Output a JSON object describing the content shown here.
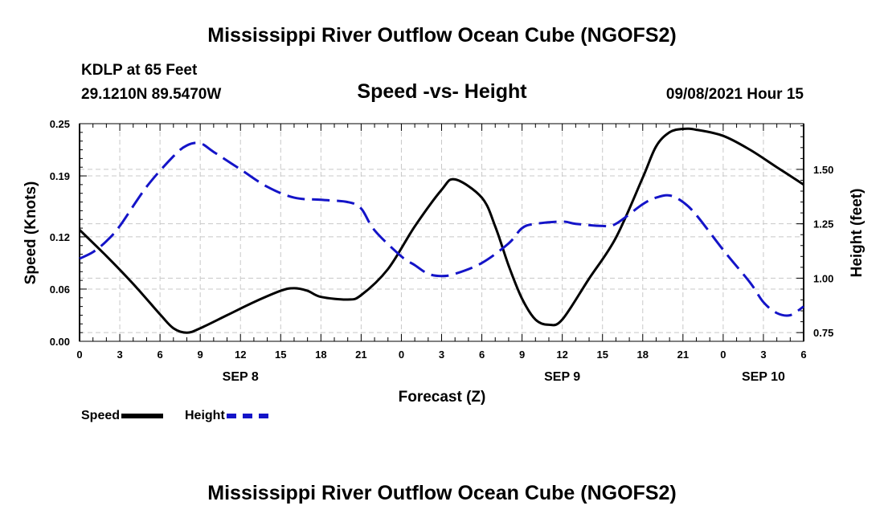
{
  "page": {
    "title": "Mississippi River Outflow Ocean Cube (NGOFS2)",
    "footer_title": "Mississippi River Outflow Ocean Cube (NGOFS2)",
    "station": "KDLP at 65 Feet",
    "location": "29.1210N  89.5470W",
    "subtitle": "Speed -vs- Height",
    "timestamp": "09/08/2021 Hour 15"
  },
  "colors": {
    "speed": "#000000",
    "height": "#1414c8",
    "grid": "#c8c8c8"
  },
  "chart_data": {
    "type": "line",
    "title": "Speed -vs- Height",
    "xlabel": "Forecast (Z)",
    "ylabel": "Speed (Knots)",
    "y2label": "Height (feet)",
    "xlim": [
      0,
      54
    ],
    "ylim": [
      0,
      0.25
    ],
    "y2lim": [
      0.71,
      1.71
    ],
    "x_ticks": [
      0,
      3,
      6,
      9,
      12,
      15,
      18,
      21,
      24,
      27,
      30,
      33,
      36,
      39,
      42,
      45,
      48,
      51,
      54
    ],
    "x_tick_labels": [
      "0",
      "3",
      "6",
      "9",
      "12",
      "15",
      "18",
      "21",
      "0",
      "3",
      "6",
      "9",
      "12",
      "15",
      "18",
      "21",
      "0",
      "3",
      "6"
    ],
    "y_ticks": [
      0.0,
      0.06,
      0.12,
      0.19,
      0.25
    ],
    "y_tick_labels": [
      "0.00",
      "0.06",
      "0.12",
      "0.19",
      "0.25"
    ],
    "y2_ticks": [
      0.75,
      1.0,
      1.25,
      1.5
    ],
    "y2_tick_labels": [
      "0.75",
      "1.00",
      "1.25",
      "1.50"
    ],
    "date_labels": [
      {
        "x": 12,
        "label": "SEP 8"
      },
      {
        "x": 36,
        "label": "SEP 9"
      },
      {
        "x": 51,
        "label": "SEP 10"
      }
    ],
    "legend": [
      "Speed",
      "Height"
    ],
    "series": [
      {
        "name": "Speed",
        "axis": "left",
        "style": "solid",
        "x": [
          0,
          2,
          4,
          6,
          7,
          8,
          9,
          11,
          13,
          15,
          16,
          17,
          18,
          20,
          21,
          23,
          25,
          27,
          28,
          30,
          31,
          32,
          33,
          34,
          35,
          36,
          38,
          40,
          42,
          43,
          44,
          45,
          46,
          48,
          50,
          52,
          54
        ],
        "values": [
          0.128,
          0.098,
          0.066,
          0.031,
          0.015,
          0.01,
          0.015,
          0.03,
          0.045,
          0.058,
          0.061,
          0.058,
          0.051,
          0.048,
          0.053,
          0.083,
          0.132,
          0.174,
          0.186,
          0.165,
          0.132,
          0.087,
          0.049,
          0.025,
          0.019,
          0.025,
          0.072,
          0.119,
          0.188,
          0.224,
          0.24,
          0.244,
          0.243,
          0.236,
          0.22,
          0.2,
          0.18
        ]
      },
      {
        "name": "Height",
        "axis": "right",
        "style": "dashed",
        "x": [
          0,
          1,
          2,
          3,
          5,
          7,
          8,
          9,
          10,
          12,
          14,
          16,
          18,
          20,
          21,
          22,
          24,
          25,
          26,
          27,
          28,
          30,
          32,
          33,
          34,
          36,
          37,
          39,
          40,
          42,
          43,
          44,
          45,
          46,
          48,
          50,
          51,
          52,
          53,
          54
        ],
        "values": [
          1.09,
          1.12,
          1.17,
          1.24,
          1.42,
          1.56,
          1.61,
          1.62,
          1.58,
          1.5,
          1.42,
          1.37,
          1.36,
          1.35,
          1.32,
          1.22,
          1.1,
          1.06,
          1.02,
          1.01,
          1.02,
          1.07,
          1.16,
          1.23,
          1.25,
          1.26,
          1.25,
          1.24,
          1.25,
          1.34,
          1.37,
          1.38,
          1.35,
          1.29,
          1.13,
          0.98,
          0.89,
          0.84,
          0.83,
          0.87
        ]
      }
    ]
  }
}
